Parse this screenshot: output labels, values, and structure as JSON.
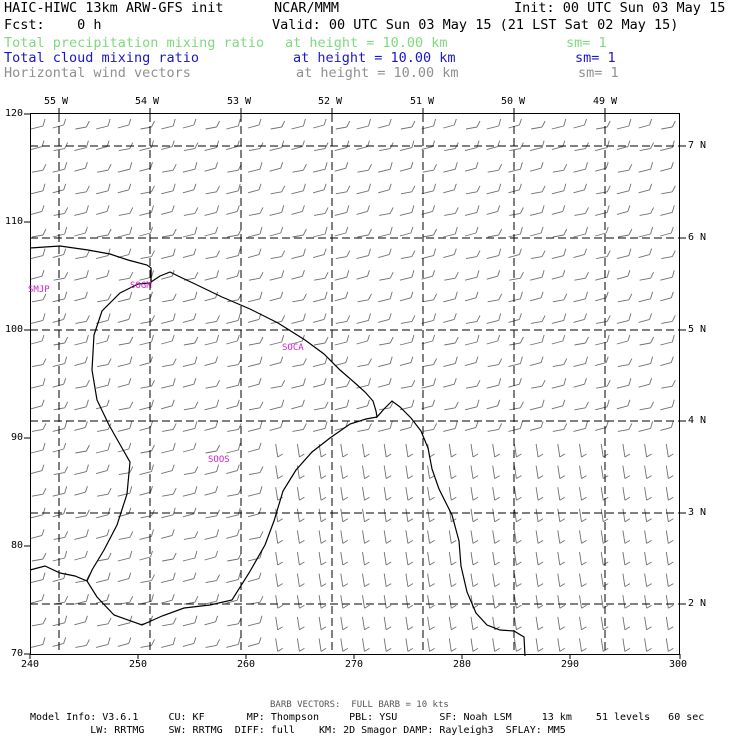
{
  "header": {
    "model": "HAIC-HIWC 13km ARW-GFS init",
    "org": "NCAR/MMM",
    "init": "Init: 00 UTC Sun 03 May 15",
    "fcst": "Fcst:    0 h",
    "valid": "Valid: 00 UTC Sun 03 May 15 (21 LST Sat 02 May 15)",
    "fields": [
      {
        "name": "Total precipitation mixing ratio",
        "height": "at height = 10.00 km",
        "sm": "sm= 1",
        "color": "#7fd97f"
      },
      {
        "name": "Total cloud mixing ratio",
        "height": "at height = 10.00 km",
        "sm": "sm= 1",
        "color": "#1818c8"
      },
      {
        "name": "Horizontal wind vectors",
        "height": "at height = 10.00 km",
        "sm": "sm= 1",
        "color": "#909090"
      }
    ]
  },
  "map": {
    "lon_labels": [
      "55 W",
      "54 W",
      "53 W",
      "52 W",
      "51 W",
      "50 W",
      "49 W"
    ],
    "lat_labels": [
      "7 N",
      "6 N",
      "5 N",
      "4 N",
      "3 N",
      "2 N"
    ],
    "x_ticks": [
      "240",
      "250",
      "260",
      "270",
      "280",
      "290",
      "300"
    ],
    "y_ticks": [
      "120",
      "110",
      "100",
      "90",
      "80",
      "70"
    ],
    "stations": [
      "SMJP",
      "SOGM",
      "SOCA",
      "SOOS"
    ],
    "station_color": "#d020d0",
    "barb_color": "#707070"
  },
  "footer": {
    "barb_note": "BARB VECTORS:  FULL BARB = 10 kts",
    "line1": "Model Info: V3.6.1     CU: KF       MP: Thompson     PBL: YSU       SF: Noah LSM     13 km    51 levels   60 sec",
    "line2": "          LW: RRTMG    SW: RRTMG  DIFF: full    KM: 2D Smagor DAMP: Rayleigh3  SFLAY: MM5"
  }
}
